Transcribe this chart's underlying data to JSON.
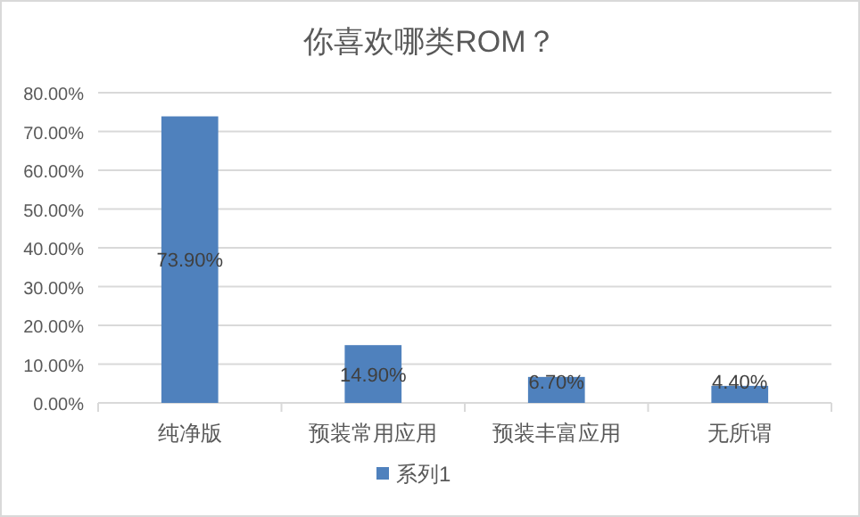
{
  "chart_data": {
    "type": "bar",
    "title": "你喜欢哪类ROM？",
    "categories": [
      "纯净版",
      "预装常用应用",
      "预装丰富应用",
      "无所谓"
    ],
    "series": [
      {
        "name": "系列1",
        "color": "#4f81bd",
        "values": [
          73.9,
          14.9,
          6.7,
          4.4
        ],
        "value_labels": [
          "73.90%",
          "14.90%",
          "6.70%",
          "4.40%"
        ]
      }
    ],
    "ylim": [
      0,
      80
    ],
    "yticks": [
      {
        "value": 0,
        "label": "0.00%"
      },
      {
        "value": 10,
        "label": "10.00%"
      },
      {
        "value": 20,
        "label": "20.00%"
      },
      {
        "value": 30,
        "label": "30.00%"
      },
      {
        "value": 40,
        "label": "40.00%"
      },
      {
        "value": 50,
        "label": "50.00%"
      },
      {
        "value": 60,
        "label": "60.00%"
      },
      {
        "value": 70,
        "label": "70.00%"
      },
      {
        "value": 80,
        "label": "80.00%"
      }
    ],
    "grid": "y",
    "legend": "bottom"
  }
}
